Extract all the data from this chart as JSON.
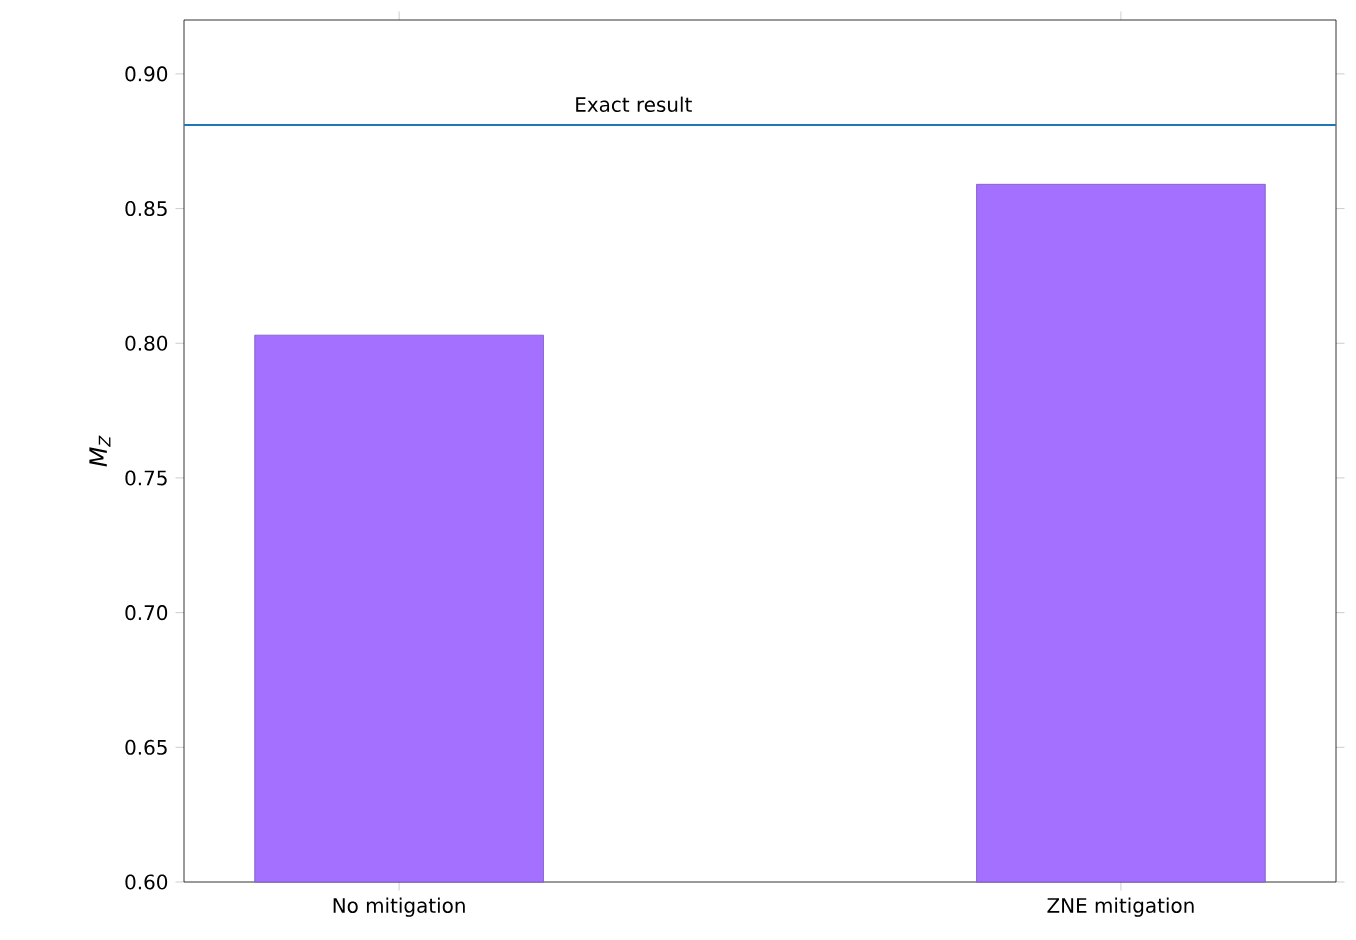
{
  "chart_data": {
    "type": "bar",
    "ylabel": "M$_{Z}$",
    "categories": [
      "No mitigation",
      "ZNE mitigation"
    ],
    "values": [
      0.803,
      0.859
    ],
    "color": "#a370ff",
    "ylim": [
      0.6,
      0.92
    ],
    "yticks": [
      {
        "value": 0.6,
        "label": "0.60"
      },
      {
        "value": 0.65,
        "label": "0.65"
      },
      {
        "value": 0.7,
        "label": "0.70"
      },
      {
        "value": 0.75,
        "label": "0.75"
      },
      {
        "value": 0.8,
        "label": "0.80"
      },
      {
        "value": 0.85,
        "label": "0.85"
      },
      {
        "value": 0.9,
        "label": "0.90"
      }
    ],
    "ref_lines": [
      {
        "axis": "y",
        "value": 0.881,
        "label": "Exact result",
        "color": "#1f77b4"
      }
    ]
  }
}
